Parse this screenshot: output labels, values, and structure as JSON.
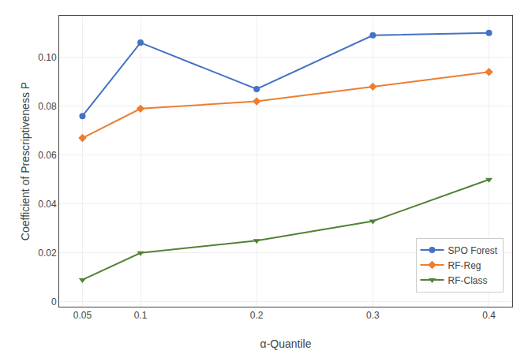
{
  "chart_data": {
    "type": "line",
    "xlabel": "α-Quantile",
    "ylabel": "Coefficient of Prescriptiveness P",
    "x": [
      0.05,
      0.1,
      0.2,
      0.3,
      0.4
    ],
    "series": [
      {
        "name": "SPO Forest",
        "color": "#4472C4",
        "marker": "circle",
        "line_style": "solid",
        "values": [
          0.076,
          0.106,
          0.087,
          0.109,
          0.11
        ]
      },
      {
        "name": "RF-Reg",
        "color": "#ED7D31",
        "marker": "diamond",
        "line_style": "solid",
        "values": [
          0.067,
          0.079,
          0.082,
          0.088,
          0.094
        ]
      },
      {
        "name": "RF-Class",
        "color": "#548235",
        "marker": "triangle-down",
        "line_style": "solid",
        "values": [
          0.009,
          0.02,
          0.025,
          0.033,
          0.05
        ]
      }
    ],
    "xlim": [
      0.03,
      0.42
    ],
    "xticks": [
      0.05,
      0.1,
      0.2,
      0.3,
      0.4
    ],
    "ylim": [
      -0.002,
      0.117
    ],
    "yticks": [
      0,
      0.02,
      0.04,
      0.06,
      0.08,
      {
        "value": 0.1,
        "label": "0.10"
      }
    ],
    "grid": true,
    "legend": "lower right"
  }
}
